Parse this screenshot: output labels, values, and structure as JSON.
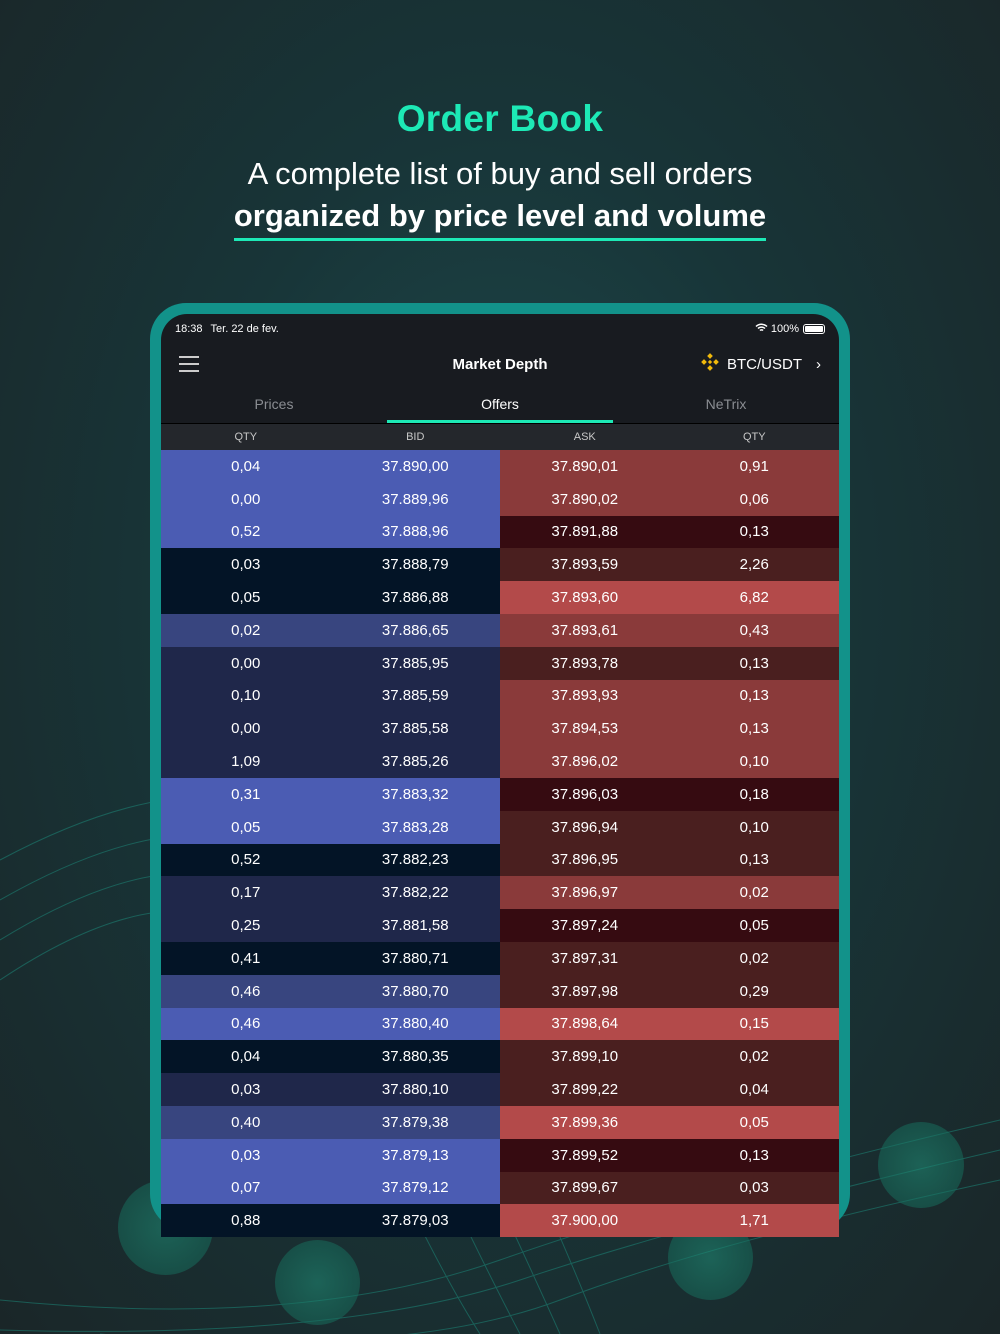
{
  "hero": {
    "title": "Order Book",
    "line1": "A complete list of buy and sell orders",
    "line2": "organized by price level and volume"
  },
  "status": {
    "time": "18:38",
    "date": "Ter. 22 de fev.",
    "battery": "100%"
  },
  "nav": {
    "title": "Market Depth",
    "pair": "BTC/USDT"
  },
  "tabs": [
    {
      "label": "Prices"
    },
    {
      "label": "Offers",
      "active": true
    },
    {
      "label": "NeTrix"
    }
  ],
  "columns": [
    "QTY",
    "BID",
    "ASK",
    "QTY"
  ],
  "colors": {
    "bid": [
      "#031426",
      "#1f274a",
      "#38457f",
      "#4b5cb3"
    ],
    "ask": [
      "#360b11",
      "#4a1f1f",
      "#8a3a3a",
      "#b34a4a"
    ],
    "accent": "#1de9b6"
  },
  "rows": [
    [
      "0,04",
      "37.890,00",
      "37.890,01",
      "0,91",
      3,
      2
    ],
    [
      "0,00",
      "37.889,96",
      "37.890,02",
      "0,06",
      3,
      2
    ],
    [
      "0,52",
      "37.888,96",
      "37.891,88",
      "0,13",
      3,
      0
    ],
    [
      "0,03",
      "37.888,79",
      "37.893,59",
      "2,26",
      0,
      1
    ],
    [
      "0,05",
      "37.886,88",
      "37.893,60",
      "6,82",
      0,
      3
    ],
    [
      "0,02",
      "37.886,65",
      "37.893,61",
      "0,43",
      2,
      2
    ],
    [
      "0,00",
      "37.885,95",
      "37.893,78",
      "0,13",
      1,
      1
    ],
    [
      "0,10",
      "37.885,59",
      "37.893,93",
      "0,13",
      1,
      2
    ],
    [
      "0,00",
      "37.885,58",
      "37.894,53",
      "0,13",
      1,
      2
    ],
    [
      "1,09",
      "37.885,26",
      "37.896,02",
      "0,10",
      1,
      2
    ],
    [
      "0,31",
      "37.883,32",
      "37.896,03",
      "0,18",
      3,
      0
    ],
    [
      "0,05",
      "37.883,28",
      "37.896,94",
      "0,10",
      3,
      1
    ],
    [
      "0,52",
      "37.882,23",
      "37.896,95",
      "0,13",
      0,
      1
    ],
    [
      "0,17",
      "37.882,22",
      "37.896,97",
      "0,02",
      1,
      2
    ],
    [
      "0,25",
      "37.881,58",
      "37.897,24",
      "0,05",
      1,
      0
    ],
    [
      "0,41",
      "37.880,71",
      "37.897,31",
      "0,02",
      0,
      1
    ],
    [
      "0,46",
      "37.880,70",
      "37.897,98",
      "0,29",
      2,
      1
    ],
    [
      "0,46",
      "37.880,40",
      "37.898,64",
      "0,15",
      3,
      3
    ],
    [
      "0,04",
      "37.880,35",
      "37.899,10",
      "0,02",
      0,
      1
    ],
    [
      "0,03",
      "37.880,10",
      "37.899,22",
      "0,04",
      1,
      1
    ],
    [
      "0,40",
      "37.879,38",
      "37.899,36",
      "0,05",
      2,
      3
    ],
    [
      "0,03",
      "37.879,13",
      "37.899,52",
      "0,13",
      3,
      0
    ],
    [
      "0,07",
      "37.879,12",
      "37.899,67",
      "0,03",
      3,
      1
    ],
    [
      "0,88",
      "37.879,03",
      "37.900,00",
      "1,71",
      0,
      3
    ]
  ]
}
